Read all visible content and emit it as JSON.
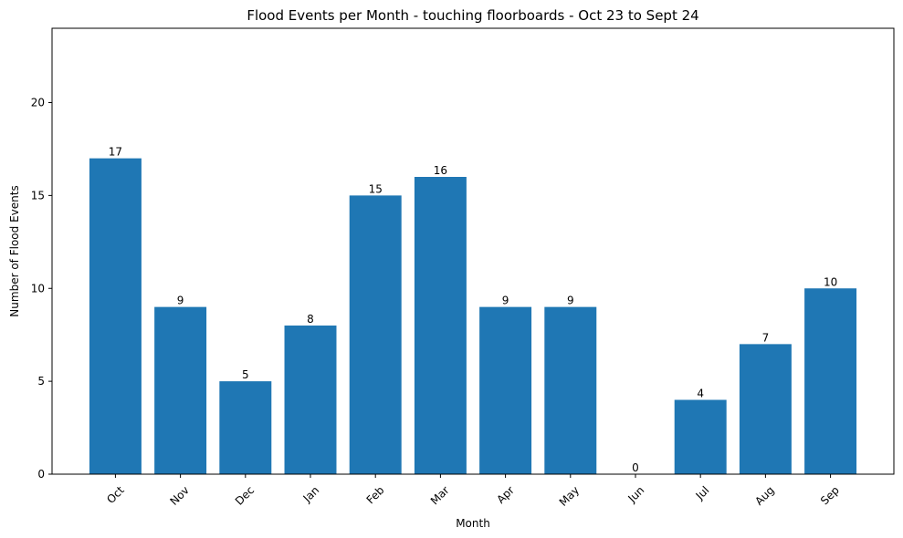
{
  "chart_data": {
    "type": "bar",
    "title": "Flood Events per Month - touching floorboards - Oct 23 to Sept 24",
    "xlabel": "Month",
    "ylabel": "Number of Flood Events",
    "categories": [
      "Oct",
      "Nov",
      "Dec",
      "Jan",
      "Feb",
      "Mar",
      "Apr",
      "May",
      "Jun",
      "Jul",
      "Aug",
      "Sep"
    ],
    "values": [
      17,
      9,
      5,
      8,
      15,
      16,
      9,
      9,
      0,
      4,
      7,
      10
    ],
    "ylim": [
      0,
      24
    ],
    "yticks": [
      0,
      5,
      10,
      15,
      20
    ],
    "grid": false,
    "bar_color": "#1f77b4",
    "x_tick_rotation": 45
  }
}
